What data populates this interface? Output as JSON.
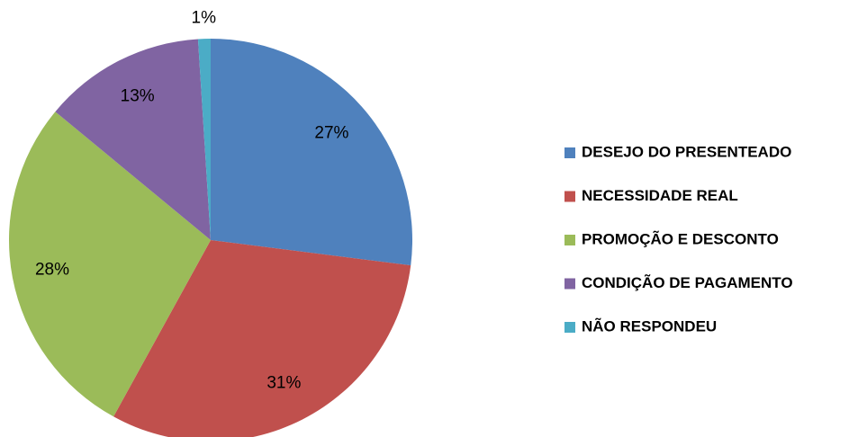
{
  "chart_data": {
    "type": "pie",
    "categories": [
      "DESEJO DO PRESENTEADO",
      "NECESSIDADE REAL",
      "PROMOÇÃO E DESCONTO",
      "CONDIÇÃO DE PAGAMENTO",
      "NÃO RESPONDEU"
    ],
    "values": [
      27,
      31,
      28,
      13,
      1
    ],
    "value_labels": [
      "27%",
      "31%",
      "28%",
      "13%",
      "1%"
    ],
    "colors": [
      "#4f81bd",
      "#c0504d",
      "#9bbb59",
      "#8064a2",
      "#4bacc6"
    ],
    "legend": "right"
  }
}
